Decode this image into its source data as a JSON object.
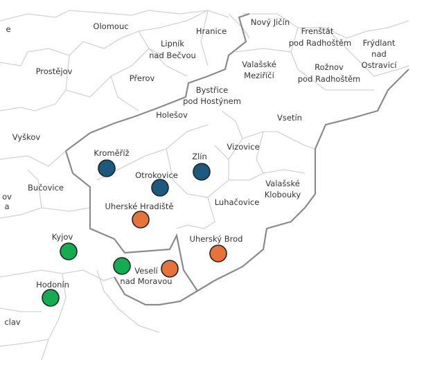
{
  "places": [
    [
      "e"
    ],
    [
      "Olomouc"
    ],
    [
      "Hranice"
    ],
    [
      "Nový Jičín"
    ],
    [
      "Frenštát",
      "pod Radhoštěm"
    ],
    [
      "Frýdlant",
      "nad",
      "Ostravicí"
    ],
    [
      "Lipník",
      "nad Bečvou"
    ],
    [
      "Prostějov"
    ],
    [
      "Přerov"
    ],
    [
      "Valašské",
      "Meziříčí"
    ],
    [
      "Rožnov",
      "pod Radhoštěm"
    ],
    [
      "Bystřice",
      "pod Hostýnem"
    ],
    [
      "Holešov"
    ],
    [
      "Vsetín"
    ],
    [
      "Vyškov"
    ],
    [
      "Kroměříž"
    ],
    [
      "Zlín"
    ],
    [
      "Vizovice"
    ],
    [
      "Otrokovice"
    ],
    [
      "Valašské",
      "Klobouky"
    ],
    [
      "Bučovice"
    ],
    [
      "ov",
      "a"
    ],
    [
      "Uherské Hradiště"
    ],
    [
      "Luhačovice"
    ],
    [
      "Uherský Brod"
    ],
    [
      "Kyjov"
    ],
    [
      "Veselí",
      "nad Moravou"
    ],
    [
      "Hodonín"
    ],
    [
      "clav"
    ]
  ]
}
